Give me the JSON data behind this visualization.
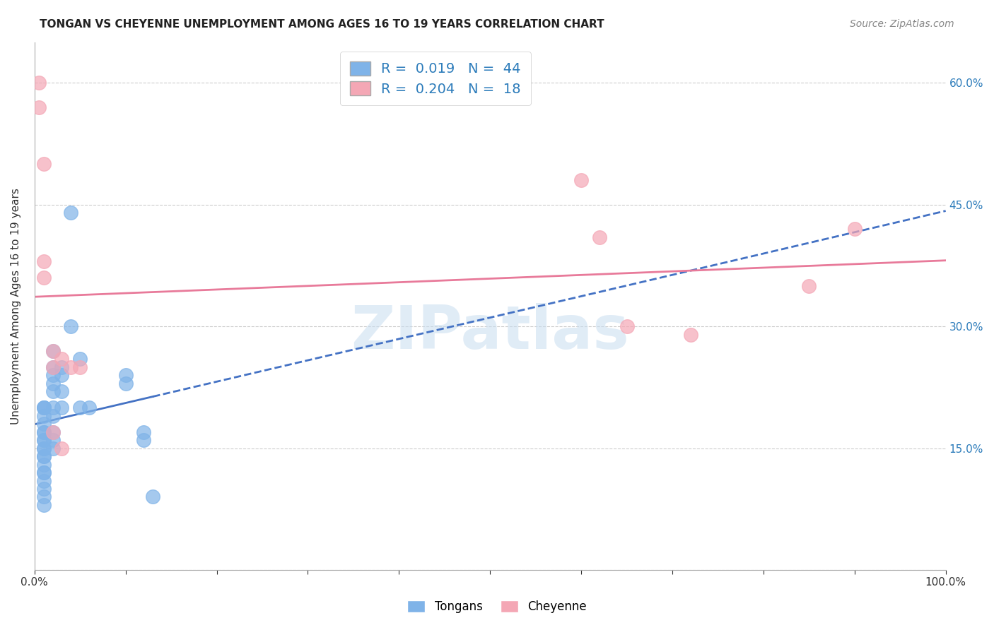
{
  "title": "TONGAN VS CHEYENNE UNEMPLOYMENT AMONG AGES 16 TO 19 YEARS CORRELATION CHART",
  "source": "Source: ZipAtlas.com",
  "ylabel": "Unemployment Among Ages 16 to 19 years",
  "xlim": [
    0.0,
    1.0
  ],
  "ylim": [
    0.0,
    0.65
  ],
  "xticks": [
    0.0,
    0.1,
    0.2,
    0.3,
    0.4,
    0.5,
    0.6,
    0.7,
    0.8,
    0.9,
    1.0
  ],
  "xticklabels": [
    "0.0%",
    "",
    "",
    "",
    "",
    "",
    "",
    "",
    "",
    "",
    "100.0%"
  ],
  "yticks": [
    0.0,
    0.15,
    0.3,
    0.45,
    0.6
  ],
  "yticklabels": [
    "",
    "15.0%",
    "30.0%",
    "45.0%",
    "60.0%"
  ],
  "tongans_x": [
    0.01,
    0.01,
    0.01,
    0.01,
    0.01,
    0.01,
    0.01,
    0.01,
    0.01,
    0.01,
    0.01,
    0.01,
    0.01,
    0.01,
    0.01,
    0.01,
    0.01,
    0.01,
    0.01,
    0.01,
    0.02,
    0.02,
    0.02,
    0.02,
    0.02,
    0.02,
    0.02,
    0.02,
    0.02,
    0.02,
    0.03,
    0.03,
    0.03,
    0.03,
    0.04,
    0.04,
    0.05,
    0.05,
    0.06,
    0.1,
    0.1,
    0.12,
    0.12,
    0.13
  ],
  "tongans_y": [
    0.2,
    0.2,
    0.2,
    0.19,
    0.18,
    0.17,
    0.17,
    0.16,
    0.16,
    0.15,
    0.15,
    0.14,
    0.14,
    0.13,
    0.12,
    0.12,
    0.11,
    0.1,
    0.09,
    0.08,
    0.27,
    0.25,
    0.24,
    0.23,
    0.22,
    0.2,
    0.19,
    0.17,
    0.16,
    0.15,
    0.25,
    0.24,
    0.22,
    0.2,
    0.44,
    0.3,
    0.26,
    0.2,
    0.2,
    0.24,
    0.23,
    0.17,
    0.16,
    0.09
  ],
  "cheyenne_x": [
    0.005,
    0.005,
    0.01,
    0.01,
    0.01,
    0.02,
    0.02,
    0.02,
    0.03,
    0.03,
    0.04,
    0.05,
    0.6,
    0.62,
    0.65,
    0.72,
    0.85,
    0.9
  ],
  "cheyenne_y": [
    0.6,
    0.57,
    0.5,
    0.38,
    0.36,
    0.27,
    0.25,
    0.17,
    0.26,
    0.15,
    0.25,
    0.25,
    0.48,
    0.41,
    0.3,
    0.29,
    0.35,
    0.42
  ],
  "tongans_color": "#7fb3e8",
  "cheyenne_color": "#f4a7b5",
  "tongans_line_color": "#4472c4",
  "cheyenne_line_color": "#e87a9a",
  "tongans_R": 0.019,
  "tongans_N": 44,
  "cheyenne_R": 0.204,
  "cheyenne_N": 18,
  "legend_label_tongans": "Tongans",
  "legend_label_cheyenne": "Cheyenne",
  "watermark": "ZIPatlas",
  "background_color": "#ffffff",
  "grid_color": "#cccccc"
}
